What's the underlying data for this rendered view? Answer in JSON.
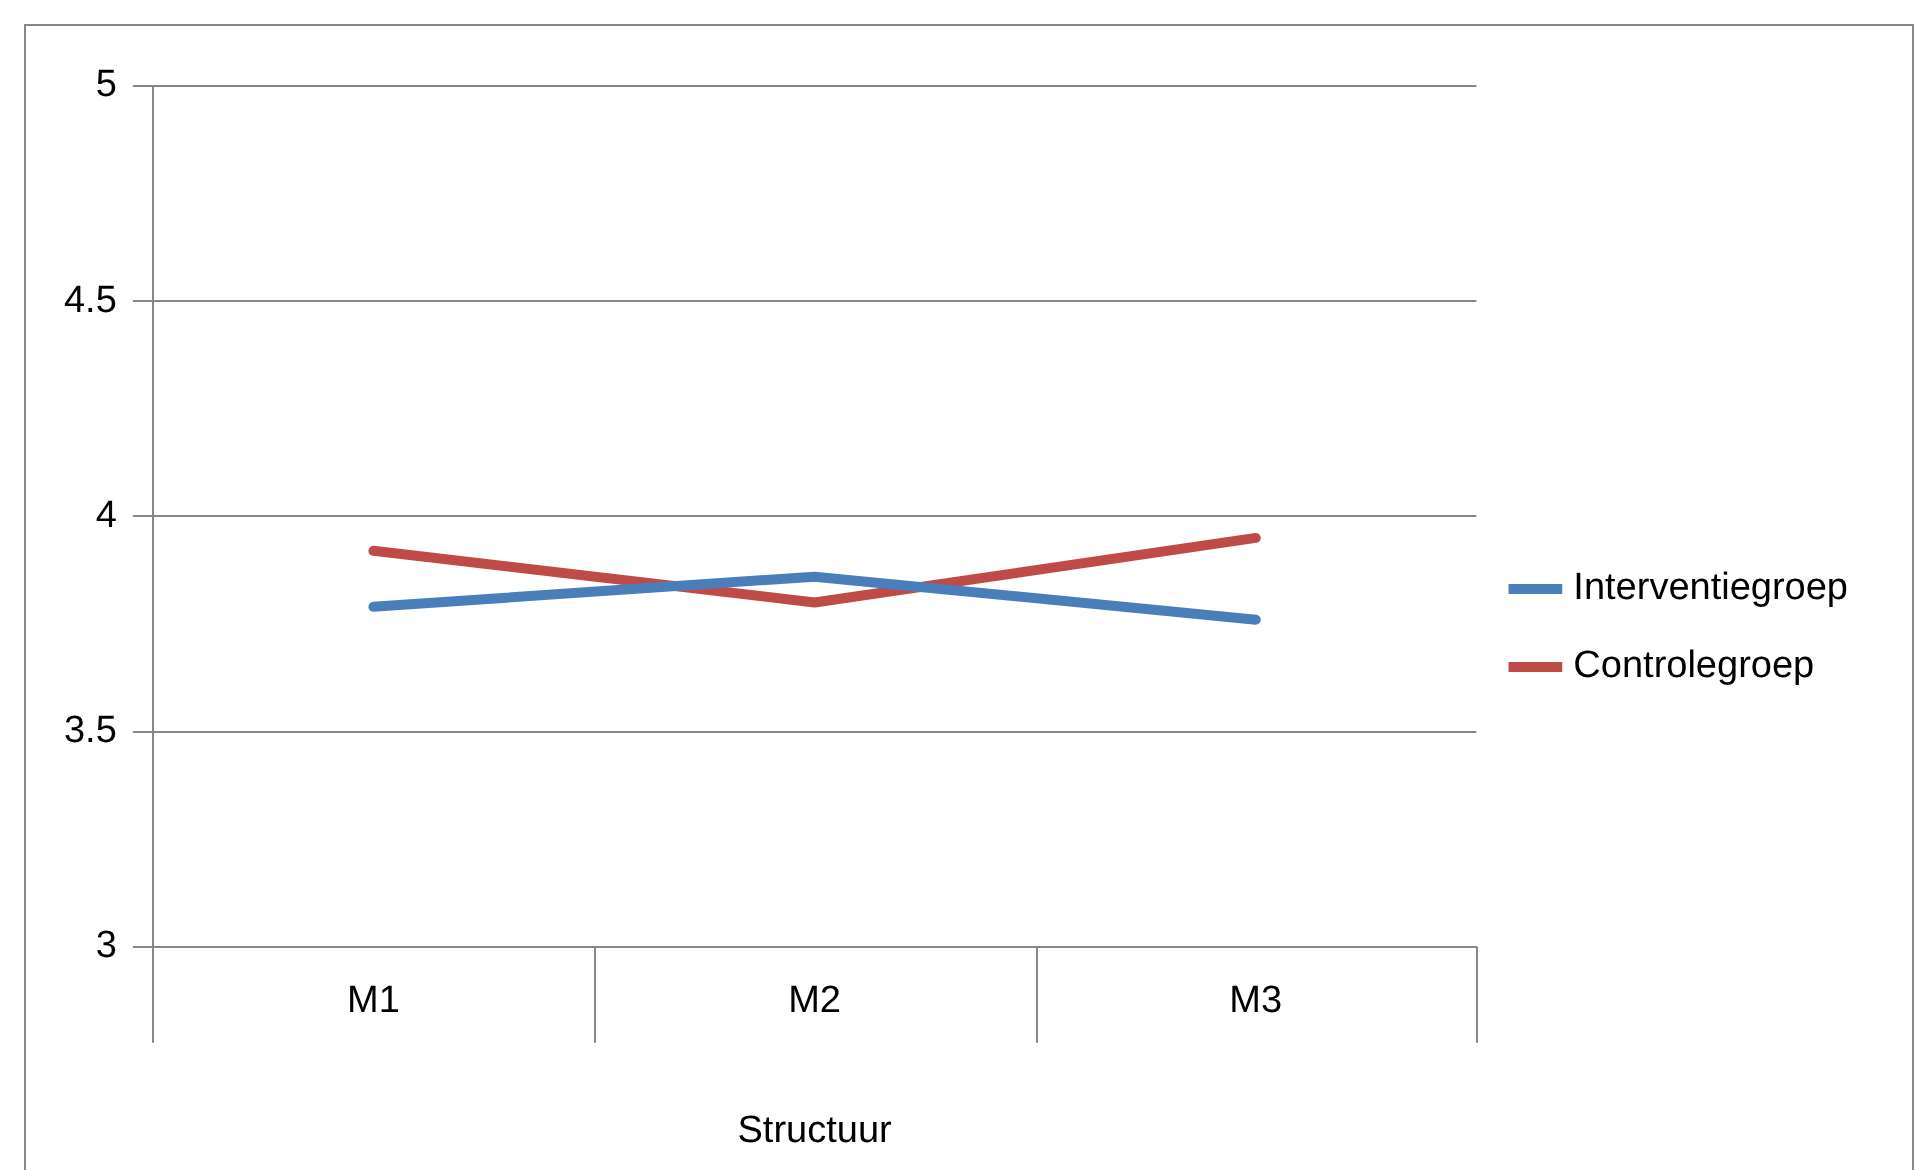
{
  "chart_data": {
    "type": "line",
    "xlabel": "Structuur",
    "categories": [
      "M1",
      "M2",
      "M3"
    ],
    "series": [
      {
        "name": "Interventiegroep",
        "color": "#4a7ebb",
        "values": [
          3.79,
          3.86,
          3.76
        ]
      },
      {
        "name": "Controlegroep",
        "color": "#be4b48",
        "values": [
          3.92,
          3.8,
          3.95
        ]
      }
    ],
    "ylim": [
      3,
      5
    ],
    "yticks": [
      3,
      3.5,
      4,
      4.5,
      5
    ],
    "grid": "y",
    "legend": "right",
    "marker": "none",
    "line_style": "solid"
  }
}
